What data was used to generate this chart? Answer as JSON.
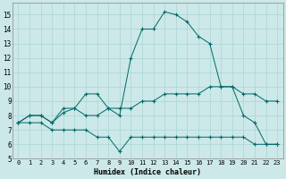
{
  "xlabel": "Humidex (Indice chaleur)",
  "bg_color": "#cce8e8",
  "grid_color": "#aad4d4",
  "line_color": "#006868",
  "xlim": [
    -0.5,
    23.5
  ],
  "ylim": [
    5,
    15.8
  ],
  "yticks": [
    5,
    6,
    7,
    8,
    9,
    10,
    11,
    12,
    13,
    14,
    15
  ],
  "xticks": [
    0,
    1,
    2,
    3,
    4,
    5,
    6,
    7,
    8,
    9,
    10,
    11,
    12,
    13,
    14,
    15,
    16,
    17,
    18,
    19,
    20,
    21,
    22,
    23
  ],
  "line1_x": [
    0,
    1,
    2,
    3,
    4,
    5,
    6,
    7,
    8,
    9,
    10,
    11,
    12,
    13,
    14,
    15,
    16,
    17,
    18,
    19,
    20,
    21,
    22,
    23
  ],
  "line1_y": [
    7.5,
    8.0,
    8.0,
    7.5,
    8.5,
    8.5,
    9.5,
    9.5,
    8.5,
    8.0,
    12.0,
    14.0,
    14.0,
    15.2,
    15.0,
    14.5,
    13.5,
    13.0,
    10.0,
    10.0,
    8.0,
    7.5,
    6.0,
    6.0
  ],
  "line2_x": [
    0,
    1,
    2,
    3,
    4,
    5,
    6,
    7,
    8,
    9,
    10,
    11,
    12,
    13,
    14,
    15,
    16,
    17,
    18,
    19,
    20,
    21,
    22,
    23
  ],
  "line2_y": [
    7.5,
    8.0,
    8.0,
    7.5,
    8.2,
    8.5,
    8.0,
    8.0,
    8.5,
    8.5,
    8.5,
    9.0,
    9.0,
    9.5,
    9.5,
    9.5,
    9.5,
    10.0,
    10.0,
    10.0,
    9.5,
    9.5,
    9.0,
    9.0
  ],
  "line3_x": [
    0,
    1,
    2,
    3,
    4,
    5,
    6,
    7,
    8,
    9,
    10,
    11,
    12,
    13,
    14,
    15,
    16,
    17,
    18,
    19,
    20,
    21,
    22,
    23
  ],
  "line3_y": [
    7.5,
    7.5,
    7.5,
    7.0,
    7.0,
    7.0,
    7.0,
    6.5,
    6.5,
    5.5,
    6.5,
    6.5,
    6.5,
    6.5,
    6.5,
    6.5,
    6.5,
    6.5,
    6.5,
    6.5,
    6.5,
    6.0,
    6.0,
    6.0
  ],
  "tick_fontsize": 5.0,
  "xlabel_fontsize": 6.0
}
